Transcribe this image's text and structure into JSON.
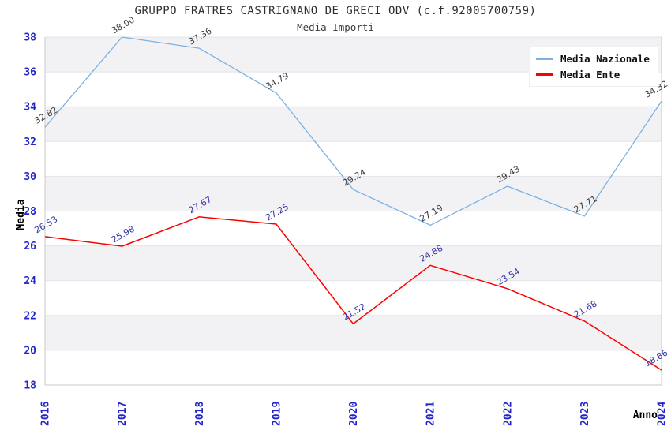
{
  "chart_data": {
    "type": "line",
    "title": "GRUPPO FRATRES CASTRIGNANO DE GRECI ODV (c.f.92005700759)",
    "subtitle": "Media Importi",
    "xlabel": "Anno",
    "ylabel": "Media",
    "x": [
      2016,
      2017,
      2018,
      2019,
      2020,
      2021,
      2022,
      2023,
      2024
    ],
    "ylim": [
      18,
      38
    ],
    "ytick_step": 2,
    "grid": "horizontal alternating bands with gridlines every 2 units",
    "legend_position": "top-right",
    "series": [
      {
        "name": "Media Nazionale",
        "color": "#7cb1e2",
        "label_color": "#3d3d3d",
        "values": [
          32.82,
          38.0,
          37.36,
          34.79,
          29.24,
          27.19,
          29.43,
          27.71,
          34.32
        ]
      },
      {
        "name": "Media Ente",
        "color": "#fa0000",
        "label_color": "#3535a8",
        "values": [
          26.53,
          25.98,
          27.67,
          27.25,
          21.52,
          24.88,
          23.54,
          21.68,
          18.86
        ]
      }
    ],
    "colors": {
      "tick_label": "#2424cc",
      "band": "#f2f2f4",
      "gridline": "#e4e4e8",
      "spine": "#c9c9c9",
      "axis_title": "#000000"
    }
  }
}
